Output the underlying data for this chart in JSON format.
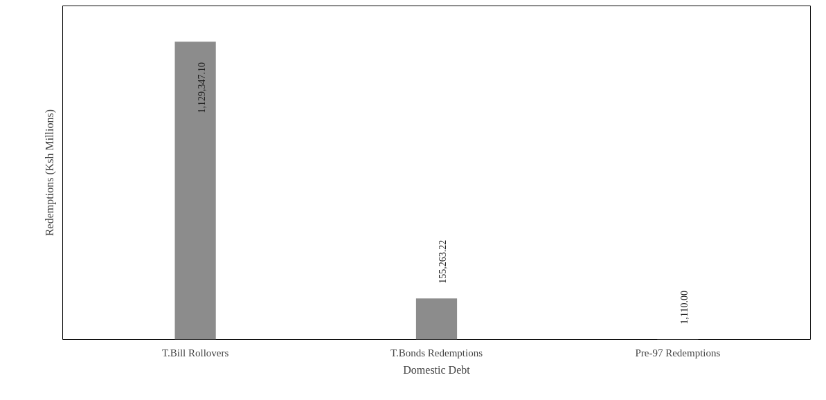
{
  "chart_data": {
    "type": "bar",
    "xlabel": "Domestic Debt",
    "ylabel": "Redemptions (Ksh Millions)",
    "categories": [
      "T.Bill Rollovers",
      "T.Bonds Redemptions",
      "Pre-97 Redemptions"
    ],
    "values": [
      1129347.1,
      155263.22,
      1110.0
    ],
    "value_labels": [
      "1,129,347.10",
      "155,263.22",
      "1,110.00"
    ],
    "color": "#8c8c8c",
    "grid": false
  }
}
